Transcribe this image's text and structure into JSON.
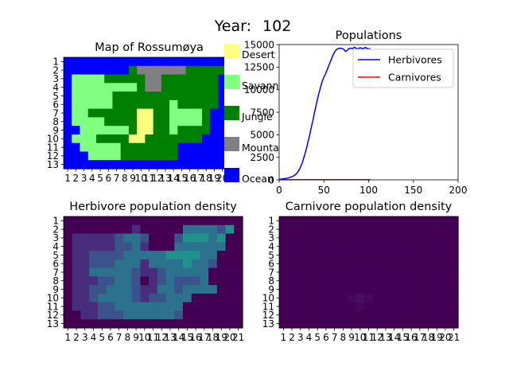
{
  "year_label": "Year:",
  "year_value": "102",
  "map": {
    "title": "Map of Rossumøya",
    "rows": [
      "OOOOOOOOOOOOOOOOOOOOO",
      "OOOOOOOOJMMMMMMJJJJJO",
      "OSSSSJJJJJMMJJJJJJJOO",
      "OSSSSSSSSJMMJJJJJJJOO",
      "OSSSSSJJJJJJJJJJJJJOO",
      "OSSSSSJJJJJJJSJJJJJOO",
      "OSSJJJJJJDDJJSSSSJOOO",
      "OSSSSJJJJDDJJSSSSJOOO",
      "OOSSSSSSJDDJJSJJJJOOO",
      "OSSSJJJJDDJJJJJJJOOOO",
      "OOSSSSSJJJJJJJOOOOOOO",
      "OOOSSSSJJJJJJJOOOOOOO",
      "OOOOOOOOOOOOOOOOOOOOO"
    ],
    "legend": [
      {
        "code": "D",
        "label": "Desert",
        "color": "#ffff80"
      },
      {
        "code": "S",
        "label": "Savannah",
        "color": "#80ff80"
      },
      {
        "code": "J",
        "label": "Jungle",
        "color": "#008000"
      },
      {
        "code": "M",
        "label": "Mountain",
        "color": "#808080"
      },
      {
        "code": "O",
        "label": "Ocean",
        "color": "#0000ff"
      }
    ],
    "x_ticks": [
      "1",
      "2",
      "3",
      "4",
      "5",
      "6",
      "7",
      "8",
      "9",
      "10",
      "11",
      "12",
      "13",
      "14",
      "15",
      "16",
      "17",
      "18",
      "19",
      "20",
      "21"
    ],
    "y_ticks": [
      "1",
      "2",
      "3",
      "4",
      "5",
      "6",
      "7",
      "8",
      "9",
      "10",
      "11",
      "12",
      "13"
    ]
  },
  "chart_data": [
    {
      "type": "line",
      "title": "Populations",
      "xlim": [
        0,
        200
      ],
      "ylim": [
        0,
        15000
      ],
      "x_ticks": [
        0,
        50,
        100,
        150,
        200
      ],
      "y_ticks": [
        0,
        2500,
        5000,
        7500,
        10000,
        12500,
        15000
      ],
      "legend_position": "top-right",
      "series": [
        {
          "name": "Herbivores",
          "color": "#0000ff",
          "x": [
            0,
            5,
            10,
            15,
            18,
            20,
            22,
            24,
            26,
            28,
            30,
            32,
            34,
            36,
            38,
            40,
            42,
            44,
            46,
            48,
            50,
            52,
            54,
            56,
            58,
            60,
            62,
            64,
            66,
            68,
            70,
            72,
            74,
            76,
            78,
            80,
            82,
            84,
            86,
            88,
            90,
            92,
            94,
            96,
            98,
            100,
            102
          ],
          "y": [
            50,
            120,
            200,
            380,
            560,
            760,
            1050,
            1450,
            1950,
            2600,
            3300,
            4100,
            4950,
            5850,
            6750,
            7700,
            8600,
            9450,
            10200,
            10900,
            11400,
            11800,
            12300,
            12800,
            13300,
            13800,
            14200,
            14450,
            14550,
            14600,
            14580,
            14500,
            14250,
            14350,
            14550,
            14600,
            14550,
            14700,
            14600,
            14500,
            14650,
            14600,
            14550,
            14680,
            14600,
            14520,
            14550
          ]
        },
        {
          "name": "Carnivores",
          "color": "#ff0000",
          "x": [
            0,
            20,
            40,
            60,
            80,
            100,
            102
          ],
          "y": [
            20,
            20,
            20,
            20,
            22,
            25,
            25
          ]
        }
      ]
    },
    {
      "type": "heatmap",
      "title": "Herbivore population density",
      "x_ticks": [
        "1",
        "2",
        "3",
        "4",
        "5",
        "6",
        "7",
        "8",
        "9",
        "10",
        "11",
        "12",
        "13",
        "14",
        "15",
        "16",
        "17",
        "18",
        "19",
        "20",
        "21"
      ],
      "y_ticks": [
        "1",
        "2",
        "3",
        "4",
        "5",
        "6",
        "7",
        "8",
        "9",
        "10",
        "11",
        "12",
        "13"
      ],
      "rows": [
        [
          0,
          0,
          0,
          0,
          0,
          0,
          0,
          0,
          0,
          0,
          0,
          0,
          0,
          0,
          0,
          0,
          0,
          0,
          0,
          0,
          0
        ],
        [
          0,
          0,
          0,
          0,
          0,
          0,
          0,
          0,
          1,
          0,
          0,
          0,
          0,
          0,
          3,
          3,
          3,
          3,
          2,
          4,
          0
        ],
        [
          0,
          1,
          1,
          1,
          1,
          1,
          2,
          3,
          3,
          2,
          0,
          0,
          0,
          2,
          4,
          4,
          4,
          3,
          4,
          0,
          0
        ],
        [
          0,
          1,
          1,
          1,
          1,
          1,
          2,
          2,
          3,
          1,
          0,
          0,
          0,
          3,
          3,
          3,
          3,
          3,
          3,
          0,
          0
        ],
        [
          0,
          1,
          1,
          2,
          2,
          2,
          2,
          3,
          3,
          3,
          3,
          3,
          4,
          4,
          4,
          4,
          3,
          3,
          0,
          0,
          0
        ],
        [
          0,
          1,
          1,
          2,
          2,
          2,
          3,
          3,
          3,
          1,
          3,
          3,
          3,
          3,
          4,
          3,
          3,
          2,
          0,
          0,
          0
        ],
        [
          0,
          1,
          1,
          3,
          3,
          3,
          3,
          3,
          2,
          1,
          1,
          2,
          3,
          3,
          3,
          3,
          3,
          0,
          0,
          0,
          0
        ],
        [
          0,
          1,
          1,
          1,
          2,
          2,
          3,
          3,
          2,
          0,
          1,
          2,
          3,
          2,
          2,
          2,
          3,
          0,
          0,
          0,
          0
        ],
        [
          0,
          1,
          1,
          2,
          2,
          3,
          3,
          3,
          2,
          1,
          1,
          3,
          3,
          2,
          3,
          3,
          3,
          3,
          0,
          0,
          0
        ],
        [
          0,
          1,
          1,
          2,
          3,
          3,
          3,
          3,
          2,
          1,
          2,
          2,
          3,
          3,
          3,
          0,
          0,
          0,
          0,
          0,
          0
        ],
        [
          0,
          1,
          1,
          1,
          2,
          2,
          3,
          3,
          3,
          3,
          3,
          3,
          3,
          3,
          0,
          0,
          0,
          0,
          0,
          0,
          0
        ],
        [
          0,
          0,
          1,
          1,
          2,
          2,
          2,
          3,
          3,
          3,
          3,
          3,
          3,
          2,
          0,
          0,
          0,
          0,
          0,
          0,
          0
        ],
        [
          0,
          0,
          0,
          0,
          0,
          0,
          0,
          0,
          0,
          0,
          0,
          0,
          0,
          0,
          0,
          0,
          0,
          0,
          0,
          0,
          0
        ]
      ],
      "palette": [
        "#440154",
        "#472d7b",
        "#3b528b",
        "#2c728e",
        "#21918c"
      ]
    },
    {
      "type": "heatmap",
      "title": "Carnivore population density",
      "x_ticks": [
        "1",
        "2",
        "3",
        "4",
        "5",
        "6",
        "7",
        "8",
        "9",
        "10",
        "11",
        "12",
        "13",
        "14",
        "15",
        "16",
        "17",
        "18",
        "19",
        "20",
        "21"
      ],
      "y_ticks": [
        "1",
        "2",
        "3",
        "4",
        "5",
        "6",
        "7",
        "8",
        "9",
        "10",
        "11",
        "12",
        "13"
      ],
      "rows": [
        [
          0,
          0,
          0,
          0,
          0,
          0,
          0,
          0,
          0,
          0,
          0,
          0,
          0,
          0,
          0,
          0,
          0,
          0,
          0,
          0,
          0
        ],
        [
          0,
          0,
          0,
          0,
          0,
          0,
          0,
          0,
          0,
          0,
          0,
          0,
          0,
          0,
          0,
          0,
          0,
          0,
          0,
          0,
          0
        ],
        [
          0,
          0,
          0,
          0,
          0,
          0,
          0,
          0,
          0,
          0,
          0,
          0,
          0,
          0,
          0,
          0,
          0,
          0,
          0,
          0,
          0
        ],
        [
          0,
          0,
          0,
          0,
          0,
          0,
          0,
          0,
          0,
          0,
          0,
          0,
          0,
          0,
          0,
          0,
          0,
          0,
          0,
          0,
          0
        ],
        [
          0,
          0,
          0,
          0,
          0,
          0,
          0,
          0,
          0,
          0,
          0,
          0,
          0,
          0,
          0,
          0,
          0,
          0,
          0,
          0,
          0
        ],
        [
          0,
          0,
          0,
          0,
          0,
          0,
          0,
          0,
          0,
          0,
          0,
          0,
          0,
          0,
          0,
          0,
          0,
          0,
          0,
          0,
          0
        ],
        [
          0,
          0,
          0,
          0,
          0,
          0,
          0,
          0,
          0,
          0,
          0,
          0,
          0,
          0,
          0,
          0,
          0,
          0,
          0,
          0,
          0
        ],
        [
          0,
          0,
          0,
          0,
          0,
          0,
          0,
          0,
          0,
          0,
          0,
          0,
          0,
          0,
          0,
          0,
          0,
          0,
          0,
          0,
          0
        ],
        [
          0,
          0,
          0,
          0,
          0,
          0,
          0,
          0,
          0,
          0,
          0,
          0,
          0,
          0,
          0,
          0,
          0,
          0,
          0,
          0,
          0
        ],
        [
          0,
          0,
          0,
          0,
          0,
          0,
          0,
          0,
          1,
          2,
          1,
          0,
          0,
          0,
          0,
          0,
          0,
          0,
          0,
          0,
          0
        ],
        [
          0,
          0,
          0,
          0,
          0,
          0,
          0,
          0,
          0,
          1,
          0,
          0,
          0,
          0,
          0,
          0,
          0,
          0,
          0,
          0,
          0
        ],
        [
          0,
          0,
          0,
          0,
          0,
          0,
          0,
          0,
          0,
          0,
          0,
          0,
          0,
          0,
          0,
          0,
          0,
          0,
          0,
          0,
          0
        ],
        [
          0,
          0,
          0,
          0,
          0,
          0,
          0,
          0,
          0,
          0,
          0,
          0,
          0,
          0,
          0,
          0,
          0,
          0,
          0,
          0,
          0
        ]
      ],
      "palette": [
        "#440154",
        "#46085c",
        "#470f62"
      ]
    }
  ]
}
